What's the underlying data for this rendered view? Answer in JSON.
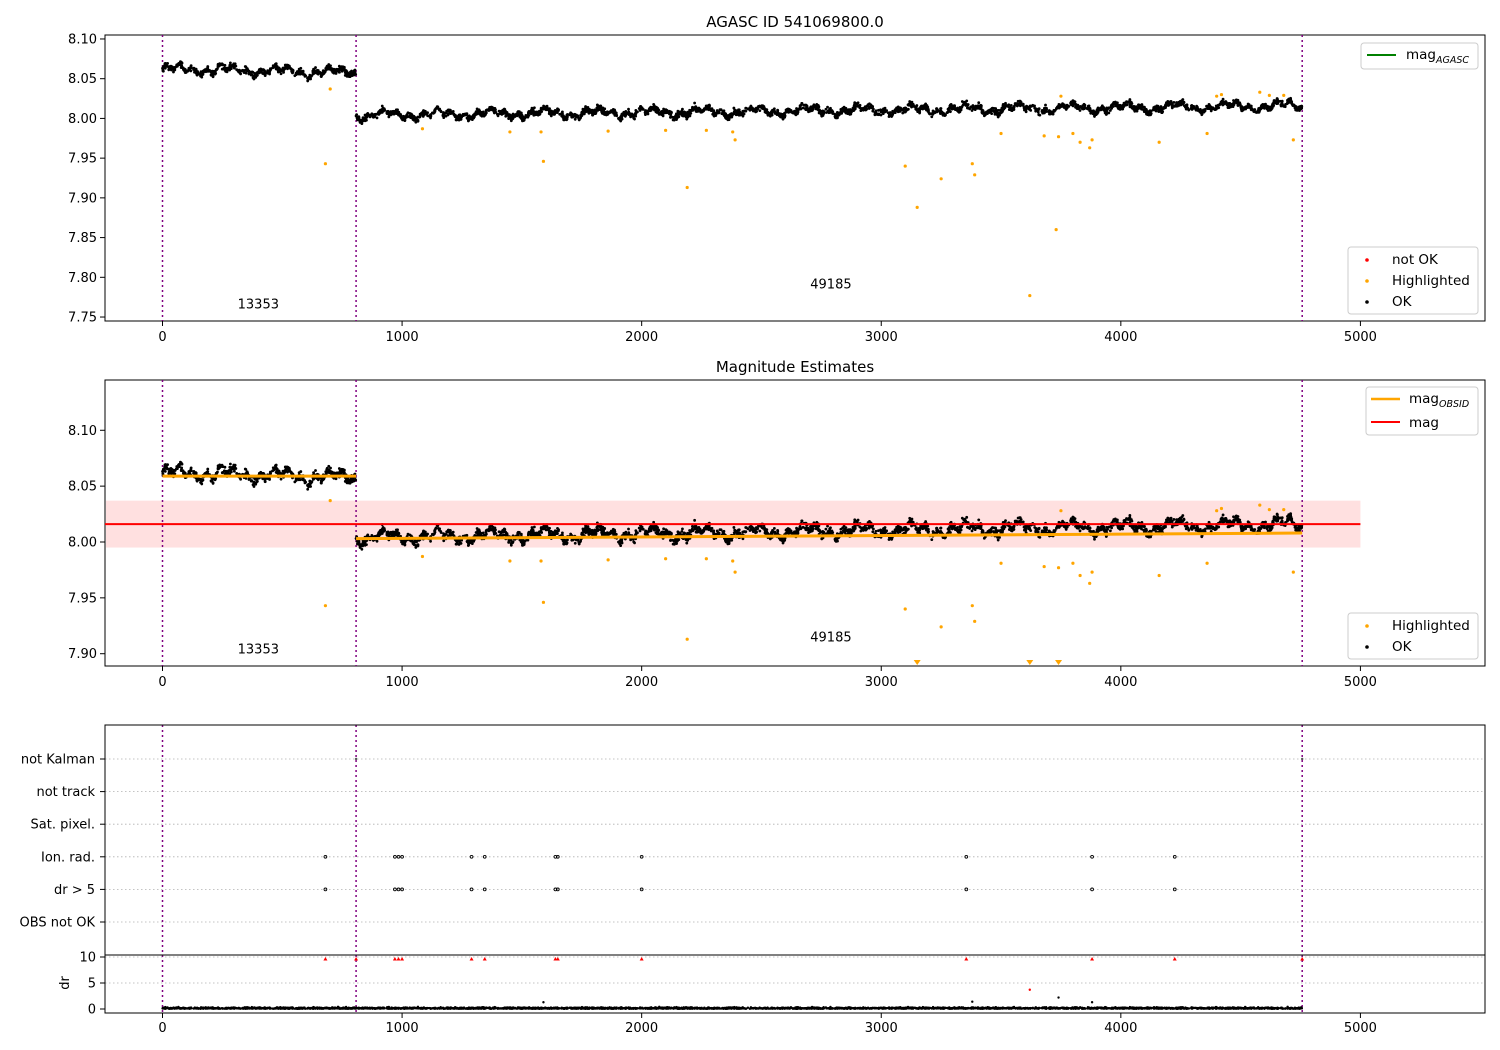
{
  "chart_data": [
    {
      "type": "scatter",
      "title": "AGASC ID 541069800.0",
      "xlim": [
        -240,
        5520
      ],
      "ylim": [
        7.745,
        8.105
      ],
      "xticks": [
        0,
        1000,
        2000,
        3000,
        4000,
        5000
      ],
      "yticks": [
        7.75,
        7.8,
        7.85,
        7.9,
        7.95,
        8.0,
        8.05,
        8.1
      ],
      "ytick_labels": [
        "7.75",
        "7.80",
        "7.85",
        "7.90",
        "7.95",
        "8.00",
        "8.05",
        "8.10"
      ],
      "obs_boundaries": [
        0,
        808,
        4757
      ],
      "obs_labels": [
        {
          "text": "13353",
          "x": 400,
          "y": 7.761
        },
        {
          "text": "49185",
          "x": 2790,
          "y": 7.786
        }
      ],
      "ok_segments": [
        {
          "x0": 0,
          "x1": 808,
          "base": 8.062,
          "trend": -0.004,
          "noise": 0.007
        },
        {
          "x0": 808,
          "x1": 4757,
          "base": 8.004,
          "trend": 0.012,
          "noise": 0.007
        }
      ],
      "highlighted": [
        [
          680,
          7.943
        ],
        [
          700,
          8.037
        ],
        [
          1085,
          7.987
        ],
        [
          1450,
          7.983
        ],
        [
          1580,
          7.983
        ],
        [
          1590,
          7.946
        ],
        [
          1860,
          7.984
        ],
        [
          2100,
          7.985
        ],
        [
          2190,
          7.913
        ],
        [
          2270,
          7.985
        ],
        [
          2390,
          7.973
        ],
        [
          2380,
          7.983
        ],
        [
          3100,
          7.94
        ],
        [
          3150,
          7.888
        ],
        [
          3250,
          7.924
        ],
        [
          3380,
          7.943
        ],
        [
          3390,
          7.929
        ],
        [
          3500,
          7.981
        ],
        [
          3620,
          7.777
        ],
        [
          3680,
          7.978
        ],
        [
          3730,
          7.86
        ],
        [
          3740,
          7.977
        ],
        [
          3750,
          8.028
        ],
        [
          3800,
          7.981
        ],
        [
          3830,
          7.97
        ],
        [
          3870,
          7.963
        ],
        [
          3880,
          7.973
        ],
        [
          4160,
          7.97
        ],
        [
          4360,
          7.981
        ],
        [
          4400,
          8.028
        ],
        [
          4420,
          8.03
        ],
        [
          4580,
          8.033
        ],
        [
          4620,
          8.029
        ],
        [
          4680,
          8.029
        ],
        [
          4720,
          7.973
        ]
      ],
      "legend_top": {
        "label": "mag",
        "subscript": "AGASC",
        "color": "#008000"
      },
      "legend_bottom": [
        {
          "label": "not OK",
          "color": "#ff0000"
        },
        {
          "label": "Highlighted",
          "color": "#ffa500"
        },
        {
          "label": "OK",
          "color": "#000000"
        }
      ]
    },
    {
      "type": "scatter",
      "title": "Magnitude Estimates",
      "xlim": [
        -240,
        5520
      ],
      "ylim": [
        7.889,
        8.145
      ],
      "xticks": [
        0,
        1000,
        2000,
        3000,
        4000,
        5000
      ],
      "yticks": [
        7.9,
        7.95,
        8.0,
        8.05,
        8.1
      ],
      "ytick_labels": [
        "7.90",
        "7.95",
        "8.00",
        "8.05",
        "8.10"
      ],
      "obs_boundaries": [
        0,
        808,
        4757
      ],
      "obs_labels": [
        {
          "text": "13353",
          "x": 400,
          "y": 7.9
        },
        {
          "text": "49185",
          "x": 2790,
          "y": 7.911
        }
      ],
      "mag": 8.016,
      "mag_band": [
        7.995,
        8.037
      ],
      "band_xrange": [
        -240,
        5000
      ],
      "mag_obsid": [
        {
          "x0": 0,
          "x1": 808,
          "y0": 8.059,
          "y1": 8.059
        },
        {
          "x0": 808,
          "x1": 4757,
          "y0": 8.003,
          "y1": 8.008
        }
      ],
      "off_chart_markers": [
        3150,
        3620,
        3740
      ],
      "legend_top": [
        {
          "label": "mag",
          "subscript": "OBSID",
          "color": "#ffa500"
        },
        {
          "label": "mag",
          "subscript": "",
          "color": "#ff0000"
        }
      ],
      "legend_bottom": [
        {
          "label": "Highlighted",
          "color": "#ffa500"
        },
        {
          "label": "OK",
          "color": "#000000"
        }
      ]
    },
    {
      "type": "scatter",
      "title": "",
      "xlim": [
        -240,
        5520
      ],
      "categories": [
        "not Kalman",
        "not track",
        "Sat. pixel.",
        "Ion. rad.",
        "dr > 5",
        "OBS not OK"
      ],
      "flag_x": [
        680,
        970,
        985,
        1000,
        1290,
        1345,
        1640,
        1650,
        2000,
        3355,
        3880,
        4225
      ],
      "obs_boundaries": [
        0,
        808,
        4757
      ]
    },
    {
      "type": "scatter",
      "title": "",
      "ylabel": "dr",
      "xlim": [
        -240,
        5520
      ],
      "ylim": [
        -0.5,
        10.5
      ],
      "yticks": [
        0,
        5,
        10
      ],
      "xticks": [
        0,
        1000,
        2000,
        3000,
        4000,
        5000
      ],
      "dr_clipped_x": [
        680,
        808,
        970,
        985,
        1000,
        1290,
        1345,
        1640,
        1650,
        2000,
        3355,
        3880,
        4225,
        4757
      ],
      "dr_outliers": [
        [
          3620,
          3.7
        ],
        [
          3740,
          2.2
        ],
        [
          1590,
          1.3
        ],
        [
          3380,
          1.4
        ],
        [
          3880,
          1.3
        ]
      ],
      "obs_boundaries": [
        0,
        808,
        4757
      ]
    }
  ]
}
